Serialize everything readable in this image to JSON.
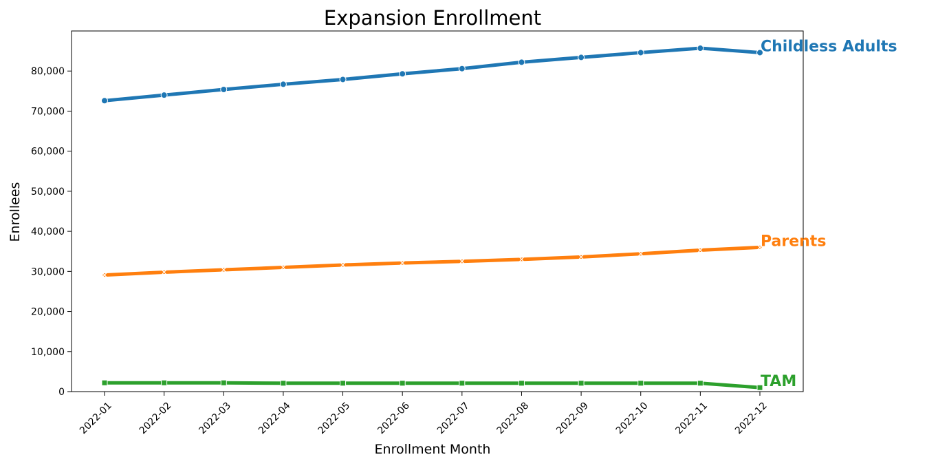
{
  "chart_data": {
    "type": "line",
    "title": "Expansion Enrollment",
    "xlabel": "Enrollment Month",
    "ylabel": "Enrollees",
    "categories": [
      "2022-01",
      "2022-02",
      "2022-03",
      "2022-04",
      "2022-05",
      "2022-06",
      "2022-07",
      "2022-08",
      "2022-09",
      "2022-10",
      "2022-11",
      "2022-12"
    ],
    "yticks": [
      0,
      10000,
      20000,
      30000,
      40000,
      50000,
      60000,
      70000,
      80000
    ],
    "ytick_labels": [
      "0",
      "10,000",
      "20,000",
      "30,000",
      "40,000",
      "50,000",
      "60,000",
      "70,000",
      "80,000"
    ],
    "ylim": [
      0,
      90000
    ],
    "grid": false,
    "legend": "none (inline end labels)",
    "series": [
      {
        "name": "Childless Adults",
        "color": "#1f77b4",
        "marker": "circle",
        "values": [
          72600,
          74000,
          75400,
          76700,
          77900,
          79300,
          80600,
          82200,
          83400,
          84600,
          85700,
          84600
        ]
      },
      {
        "name": "Parents",
        "color": "#ff7f0e",
        "marker": "x",
        "values": [
          29100,
          29800,
          30400,
          31000,
          31600,
          32100,
          32500,
          33000,
          33600,
          34400,
          35300,
          36000
        ]
      },
      {
        "name": "TAM",
        "color": "#2ca02c",
        "marker": "square",
        "values": [
          2200,
          2200,
          2200,
          2100,
          2100,
          2100,
          2100,
          2100,
          2100,
          2100,
          2100,
          1000
        ]
      }
    ]
  }
}
